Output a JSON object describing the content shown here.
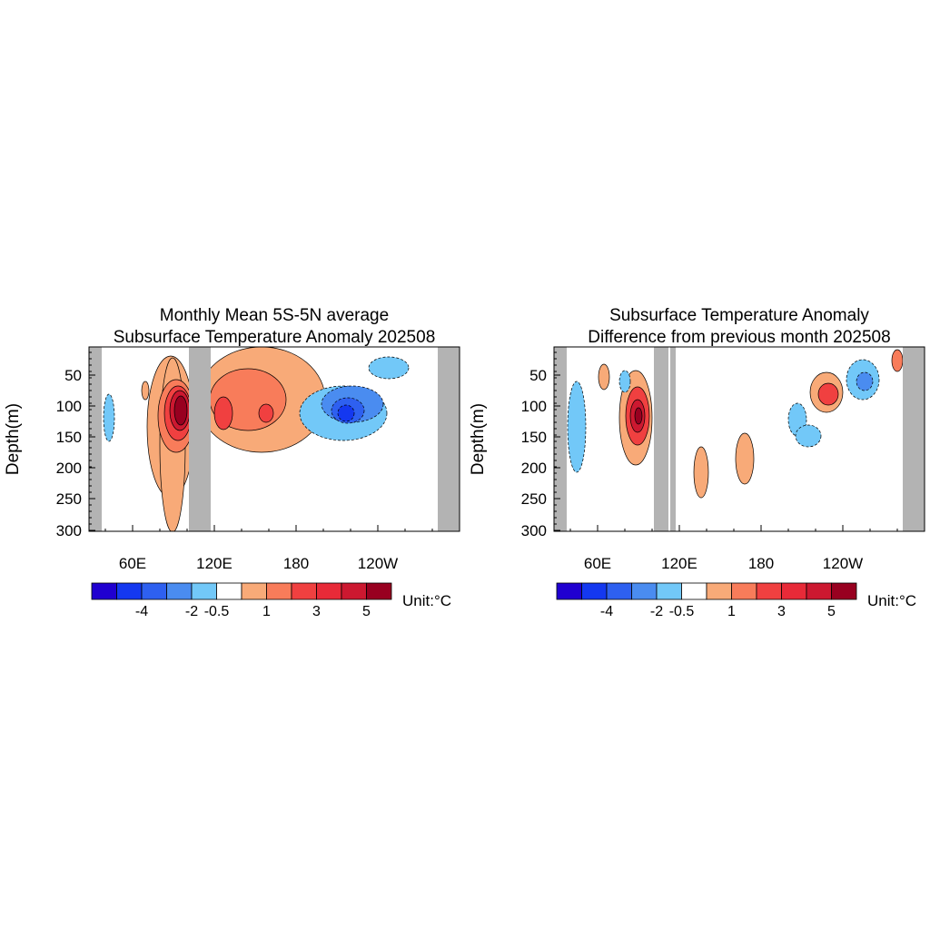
{
  "chart_data": [
    {
      "type": "heatmap",
      "title_lines": [
        "Monthly Mean 5S-5N average",
        "Subsurface Temperature Anomaly 202508"
      ],
      "xlabel": "",
      "ylabel": "Depth(m)",
      "x_ticks": [
        "60E",
        "120E",
        "180",
        "120W"
      ],
      "y_ticks": [
        "50",
        "100",
        "150",
        "200",
        "250",
        "300"
      ],
      "ylim": [
        300,
        0
      ],
      "unit_label": "Unit:°C",
      "color_levels": [
        "#2000d0",
        "#1438f0",
        "#2e60f0",
        "#4a8cf0",
        "#72c8f8",
        "#ffffff",
        "#f8aa78",
        "#f87c5a",
        "#f04040",
        "#e82a38",
        "#cc1830",
        "#980020"
      ],
      "colorbar_labels": [
        "-4",
        "-2",
        "-0.5",
        "1",
        "3",
        "5"
      ],
      "land_color": "#b3b3b3"
    },
    {
      "type": "heatmap",
      "title_lines": [
        "Subsurface Temperature Anomaly",
        "Difference from previous month 202508"
      ],
      "xlabel": "",
      "ylabel": "Depth(m)",
      "x_ticks": [
        "60E",
        "120E",
        "180",
        "120W"
      ],
      "y_ticks": [
        "50",
        "100",
        "150",
        "200",
        "250",
        "300"
      ],
      "ylim": [
        300,
        0
      ],
      "unit_label": "Unit:°C",
      "color_levels": [
        "#2000d0",
        "#1438f0",
        "#2e60f0",
        "#4a8cf0",
        "#72c8f8",
        "#ffffff",
        "#f8aa78",
        "#f87c5a",
        "#f04040",
        "#e82a38",
        "#cc1830",
        "#980020"
      ],
      "colorbar_labels": [
        "-4",
        "-2",
        "-0.5",
        "1",
        "3",
        "5"
      ],
      "land_color": "#b3b3b3"
    }
  ]
}
